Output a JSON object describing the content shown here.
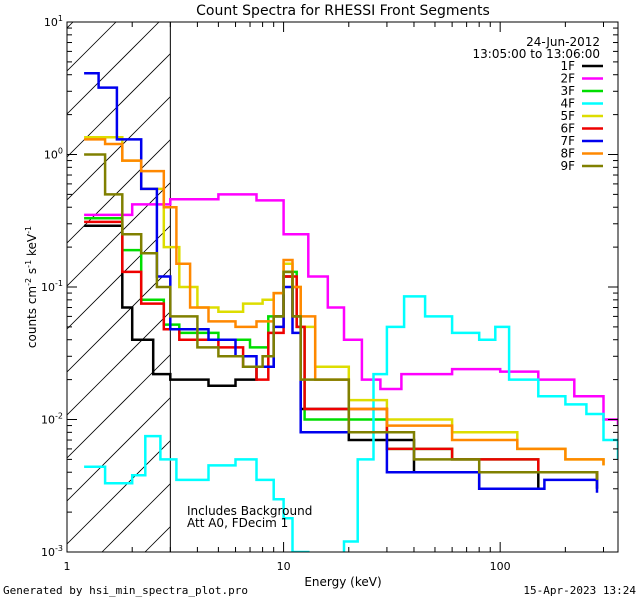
{
  "chart_data": {
    "type": "line",
    "style": "step",
    "title": "Count Spectra for RHESSI Front Segments",
    "xlabel": "Energy (keV)",
    "ylabel": "counts cm^-2 s^-1 keV^-1",
    "ylabel_parts": {
      "main": "counts cm",
      "e1": "-2",
      "mid1": " s",
      "e2": "-1",
      "mid2": " keV",
      "e3": "-1"
    },
    "xscale": "log",
    "yscale": "log",
    "xlim": [
      1,
      350
    ],
    "ylim": [
      0.001,
      10
    ],
    "x_ticks": [
      {
        "value": 1,
        "label": "1"
      },
      {
        "value": 10,
        "label": "10"
      },
      {
        "value": 100,
        "label": "100"
      }
    ],
    "y_ticks": [
      {
        "value": 0.001,
        "base": "10",
        "exp": "-3"
      },
      {
        "value": 0.01,
        "base": "10",
        "exp": "-2"
      },
      {
        "value": 0.1,
        "base": "10",
        "exp": "-1"
      },
      {
        "value": 1,
        "base": "10",
        "exp": "0"
      },
      {
        "value": 10,
        "base": "10",
        "exp": "1"
      }
    ],
    "hatched_region_keV": [
      1,
      3
    ],
    "legend_date": "24-Jun-2012",
    "legend_time": "13:05:00 to 13:06:00",
    "annotation_lines": [
      "Includes Background",
      "Att A0, FDecim 1"
    ],
    "series": [
      {
        "name": "1F",
        "color": "#000000",
        "points": [
          [
            1.2,
            0.29
          ],
          [
            1.8,
            0.07
          ],
          [
            2.0,
            0.04
          ],
          [
            2.5,
            0.022
          ],
          [
            3.0,
            0.02
          ],
          [
            4.5,
            0.018
          ],
          [
            6.0,
            0.02
          ],
          [
            7.5,
            0.025
          ],
          [
            9.0,
            0.06
          ],
          [
            10.0,
            0.12
          ],
          [
            11.0,
            0.06
          ],
          [
            12.0,
            0.012
          ],
          [
            20.0,
            0.007
          ],
          [
            40.0,
            0.004
          ],
          [
            80.0,
            0.003
          ],
          [
            150.0,
            0.004
          ],
          [
            280.0,
            0.003
          ]
        ]
      },
      {
        "name": "2F",
        "color": "#ff00ff",
        "points": [
          [
            1.2,
            0.35
          ],
          [
            2.0,
            0.42
          ],
          [
            3.0,
            0.46
          ],
          [
            5.0,
            0.5
          ],
          [
            7.5,
            0.45
          ],
          [
            10.0,
            0.25
          ],
          [
            13.0,
            0.12
          ],
          [
            16.0,
            0.07
          ],
          [
            19.0,
            0.04
          ],
          [
            23.0,
            0.02
          ],
          [
            28.0,
            0.017
          ],
          [
            35.0,
            0.022
          ],
          [
            60.0,
            0.024
          ],
          [
            100.0,
            0.023
          ],
          [
            150.0,
            0.02
          ],
          [
            220.0,
            0.015
          ],
          [
            300.0,
            0.01
          ],
          [
            350.0,
            0.009
          ]
        ]
      },
      {
        "name": "3F",
        "color": "#00dd00",
        "points": [
          [
            1.2,
            0.33
          ],
          [
            1.8,
            0.19
          ],
          [
            2.2,
            0.08
          ],
          [
            2.8,
            0.052
          ],
          [
            3.3,
            0.045
          ],
          [
            5.0,
            0.04
          ],
          [
            7.0,
            0.035
          ],
          [
            8.5,
            0.06
          ],
          [
            10.0,
            0.13
          ],
          [
            11.5,
            0.05
          ],
          [
            12.5,
            0.01
          ],
          [
            30.0,
            0.006
          ],
          [
            60.0,
            0.005
          ],
          [
            150.0,
            0.004
          ],
          [
            280.0,
            0.0035
          ]
        ]
      },
      {
        "name": "4F",
        "color": "#00ffff",
        "points": [
          [
            1.2,
            0.0044
          ],
          [
            1.5,
            0.0033
          ],
          [
            2.0,
            0.0038
          ],
          [
            2.3,
            0.0075
          ],
          [
            2.7,
            0.005
          ],
          [
            3.2,
            0.0035
          ],
          [
            4.5,
            0.0045
          ],
          [
            6.0,
            0.005
          ],
          [
            7.5,
            0.0035
          ],
          [
            9.0,
            0.0025
          ],
          [
            10.0,
            0.0018
          ],
          [
            11.0,
            0.001
          ],
          [
            13.0,
            0.0009
          ],
          [
            19.0,
            0.0012
          ],
          [
            22.0,
            0.005
          ],
          [
            26.0,
            0.022
          ],
          [
            30.0,
            0.05
          ],
          [
            36.0,
            0.085
          ],
          [
            45.0,
            0.06
          ],
          [
            60.0,
            0.045
          ],
          [
            80.0,
            0.04
          ],
          [
            95.0,
            0.05
          ],
          [
            110.0,
            0.02
          ],
          [
            150.0,
            0.015
          ],
          [
            200.0,
            0.013
          ],
          [
            250.0,
            0.011
          ],
          [
            300.0,
            0.007
          ],
          [
            350.0,
            0.005
          ]
        ]
      },
      {
        "name": "5F",
        "color": "#dddd00",
        "points": [
          [
            1.2,
            1.35
          ],
          [
            1.8,
            0.9
          ],
          [
            2.2,
            0.55
          ],
          [
            2.8,
            0.2
          ],
          [
            3.3,
            0.1
          ],
          [
            4.0,
            0.07
          ],
          [
            5.0,
            0.065
          ],
          [
            6.5,
            0.075
          ],
          [
            8.0,
            0.08
          ],
          [
            9.0,
            0.09
          ],
          [
            10.0,
            0.15
          ],
          [
            11.0,
            0.1
          ],
          [
            12.0,
            0.05
          ],
          [
            14.0,
            0.025
          ],
          [
            20.0,
            0.014
          ],
          [
            30.0,
            0.01
          ],
          [
            60.0,
            0.008
          ],
          [
            120.0,
            0.006
          ],
          [
            200.0,
            0.005
          ],
          [
            300.0,
            0.0045
          ]
        ]
      },
      {
        "name": "6F",
        "color": "#ee0000",
        "points": [
          [
            1.2,
            0.31
          ],
          [
            1.8,
            0.13
          ],
          [
            2.2,
            0.075
          ],
          [
            2.8,
            0.048
          ],
          [
            3.3,
            0.04
          ],
          [
            5.0,
            0.035
          ],
          [
            6.5,
            0.025
          ],
          [
            7.5,
            0.02
          ],
          [
            8.5,
            0.045
          ],
          [
            10.0,
            0.12
          ],
          [
            11.5,
            0.05
          ],
          [
            12.5,
            0.012
          ],
          [
            30.0,
            0.006
          ],
          [
            60.0,
            0.005
          ],
          [
            150.0,
            0.004
          ],
          [
            280.0,
            0.0035
          ]
        ]
      },
      {
        "name": "7F",
        "color": "#0000ee",
        "points": [
          [
            1.2,
            4.1
          ],
          [
            1.4,
            3.2
          ],
          [
            1.7,
            1.3
          ],
          [
            2.2,
            0.55
          ],
          [
            2.6,
            0.12
          ],
          [
            3.0,
            0.048
          ],
          [
            4.5,
            0.04
          ],
          [
            6.0,
            0.03
          ],
          [
            7.5,
            0.025
          ],
          [
            9.0,
            0.05
          ],
          [
            10.0,
            0.1
          ],
          [
            11.0,
            0.045
          ],
          [
            12.0,
            0.008
          ],
          [
            30.0,
            0.004
          ],
          [
            80.0,
            0.003
          ],
          [
            160.0,
            0.0035
          ],
          [
            280.0,
            0.0028
          ]
        ]
      },
      {
        "name": "8F",
        "color": "#ff8800",
        "points": [
          [
            1.2,
            1.3
          ],
          [
            1.5,
            1.2
          ],
          [
            1.8,
            0.9
          ],
          [
            2.2,
            0.75
          ],
          [
            2.8,
            0.4
          ],
          [
            3.2,
            0.15
          ],
          [
            3.7,
            0.07
          ],
          [
            4.5,
            0.055
          ],
          [
            6.0,
            0.05
          ],
          [
            7.5,
            0.055
          ],
          [
            9.0,
            0.09
          ],
          [
            10.0,
            0.16
          ],
          [
            11.0,
            0.1
          ],
          [
            12.0,
            0.06
          ],
          [
            14.0,
            0.02
          ],
          [
            20.0,
            0.012
          ],
          [
            30.0,
            0.009
          ],
          [
            60.0,
            0.007
          ],
          [
            120.0,
            0.006
          ],
          [
            200.0,
            0.005
          ],
          [
            300.0,
            0.0045
          ]
        ]
      },
      {
        "name": "9F",
        "color": "#808000",
        "points": [
          [
            1.2,
            1.0
          ],
          [
            1.5,
            0.5
          ],
          [
            1.8,
            0.25
          ],
          [
            2.2,
            0.18
          ],
          [
            2.6,
            0.1
          ],
          [
            3.0,
            0.06
          ],
          [
            4.0,
            0.035
          ],
          [
            5.0,
            0.03
          ],
          [
            6.5,
            0.025
          ],
          [
            8.0,
            0.03
          ],
          [
            9.0,
            0.06
          ],
          [
            10.0,
            0.13
          ],
          [
            11.0,
            0.06
          ],
          [
            12.0,
            0.02
          ],
          [
            20.0,
            0.008
          ],
          [
            40.0,
            0.005
          ],
          [
            80.0,
            0.004
          ],
          [
            160.0,
            0.004
          ],
          [
            280.0,
            0.0035
          ]
        ]
      }
    ]
  },
  "footer": {
    "left": "Generated by hsi_min_spectra_plot.pro",
    "right": "15-Apr-2023 13:24"
  }
}
